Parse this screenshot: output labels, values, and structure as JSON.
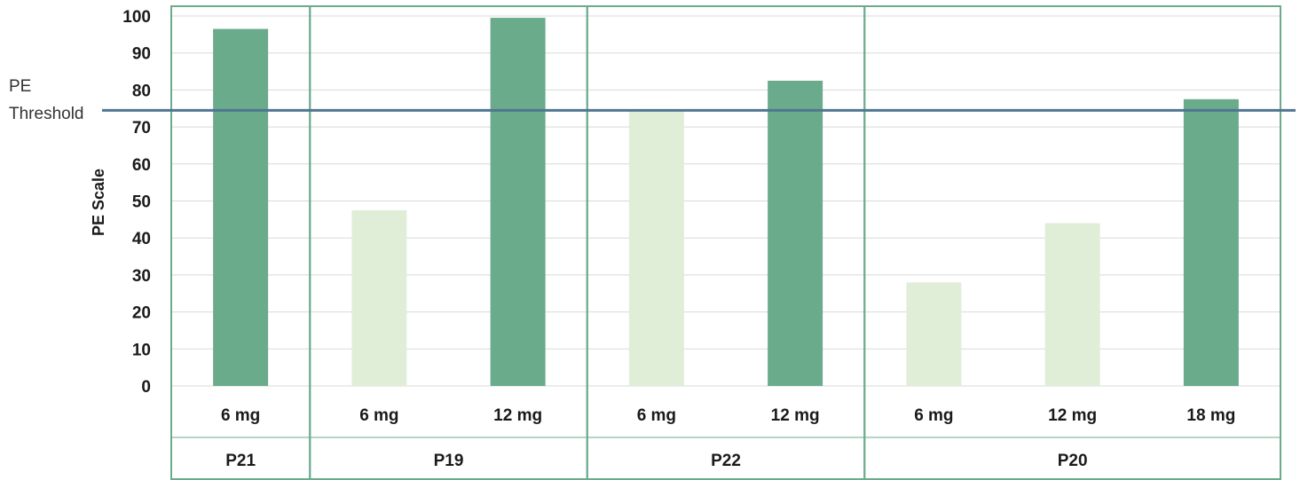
{
  "chart_data": {
    "type": "bar",
    "ylabel": "PE Scale",
    "ylim": [
      0,
      100
    ],
    "yticks": [
      0,
      10,
      20,
      30,
      40,
      50,
      60,
      70,
      80,
      90,
      100
    ],
    "grid": true,
    "threshold": {
      "label_line1": "PE",
      "label_line2": "Threshold",
      "value": 74.5,
      "color": "#4f7691"
    },
    "colors": {
      "above": "#6aab8c",
      "below": "#e0eed8",
      "frame": "#6aab8c",
      "grid": "#d9d9d9"
    },
    "groups": [
      {
        "name": "P21",
        "bars": [
          {
            "label": "6 mg",
            "value": 96.5
          }
        ]
      },
      {
        "name": "P19",
        "bars": [
          {
            "label": "6 mg",
            "value": 47.5
          },
          {
            "label": "12 mg",
            "value": 99.5
          }
        ]
      },
      {
        "name": "P22",
        "bars": [
          {
            "label": "6 mg",
            "value": 74.5
          },
          {
            "label": "12 mg",
            "value": 82.5
          }
        ]
      },
      {
        "name": "P20",
        "bars": [
          {
            "label": "6 mg",
            "value": 28
          },
          {
            "label": "12 mg",
            "value": 44
          },
          {
            "label": "18 mg",
            "value": 77.5
          }
        ]
      }
    ]
  }
}
